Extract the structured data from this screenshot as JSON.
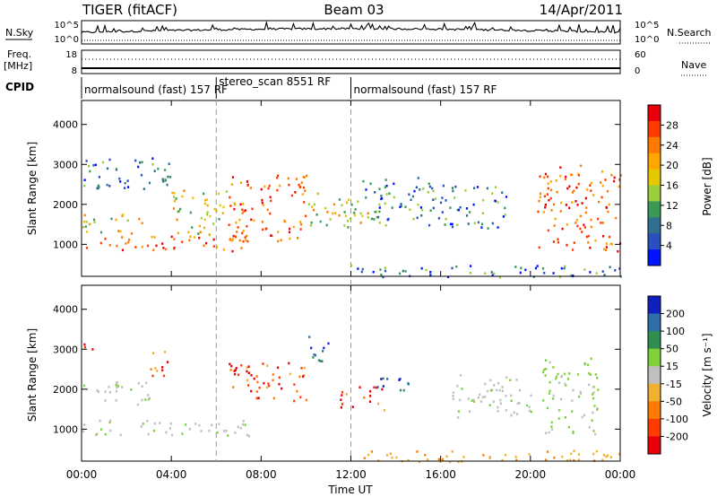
{
  "header": {
    "title": "TIGER (fitACF)",
    "beam": "Beam 03",
    "date": "14/Apr/2011"
  },
  "status_panel": {
    "nsky_label": "N.Sky",
    "nsky_ticks": [
      "10^5",
      "10^0"
    ],
    "nsearch_label": "N.Search",
    "nsearch_ticks": [
      "10^5",
      "10^0"
    ],
    "freq_label_line1": "Freq.",
    "freq_label_line2": "[MHz]",
    "freq_ticks": [
      "18",
      "8"
    ],
    "nave_label": "Nave",
    "nave_ticks": [
      "60",
      "0"
    ],
    "cpid_label": "CPID"
  },
  "modes": [
    {
      "name": "normalsound (fast) 157 RF",
      "start_hour": 0,
      "end_hour": 6
    },
    {
      "name": "stereo_scan 8551 RF",
      "start_hour": 6,
      "end_hour": 12
    },
    {
      "name": "normalsound (fast) 157 RF",
      "start_hour": 12,
      "end_hour": 24
    }
  ],
  "power_panel": {
    "ylabel": "Slant Range [km]",
    "yticks": [
      "4000",
      "3000",
      "2000",
      "1000"
    ],
    "colorbar_label": "Power [dB]",
    "colorbar_ticks": [
      "28",
      "24",
      "20",
      "16",
      "12",
      "8",
      "4"
    ],
    "colorbar_colors": [
      "#e8000b",
      "#ff3b00",
      "#ff7a00",
      "#ffa500",
      "#e6c800",
      "#9ccd3a",
      "#3a9a55",
      "#2f6f8f",
      "#2a4fbf",
      "#0014ff"
    ]
  },
  "velocity_panel": {
    "ylabel": "Slant Range [km]",
    "yticks": [
      "4000",
      "3000",
      "2000",
      "1000"
    ],
    "colorbar_label": "Velocity [m s⁻¹]",
    "colorbar_ticks": [
      "200",
      "100",
      "50",
      "15",
      "-15",
      "-50",
      "-100",
      "-200"
    ],
    "colorbar_colors": [
      "#1020c0",
      "#2e6eaa",
      "#2f8f50",
      "#7fd13b",
      "#bfbfbf",
      "#f0b030",
      "#ff7a00",
      "#ff3b00",
      "#e8000b"
    ]
  },
  "x_axis": {
    "label": "Time UT",
    "ticks": [
      "00:00",
      "04:00",
      "08:00",
      "12:00",
      "16:00",
      "20:00",
      "00:00"
    ]
  },
  "chart_data": [
    {
      "type": "heatmap",
      "title": "Power",
      "xlabel": "Time UT",
      "ylabel": "Slant Range [km]",
      "xlim": [
        0,
        24
      ],
      "ylim": [
        200,
        4600
      ],
      "zlabel": "Power [dB]",
      "zlim": [
        0,
        30
      ],
      "regions": [
        {
          "t0": 0.0,
          "t1": 7.5,
          "r0": 850,
          "r1": 1250,
          "level": "strong"
        },
        {
          "t0": 0.0,
          "t1": 3.0,
          "r0": 1300,
          "r1": 1800,
          "level": "medium"
        },
        {
          "t0": 0.0,
          "t1": 4.0,
          "r0": 2400,
          "r1": 3200,
          "level": "weak"
        },
        {
          "t0": 4.0,
          "t1": 6.5,
          "r0": 1200,
          "r1": 2400,
          "level": "medium"
        },
        {
          "t0": 6.5,
          "t1": 10.0,
          "r0": 1100,
          "r1": 2800,
          "level": "strong"
        },
        {
          "t0": 10.0,
          "t1": 12.5,
          "r0": 1400,
          "r1": 2300,
          "level": "medium"
        },
        {
          "t0": 12.0,
          "t1": 13.5,
          "r0": 1700,
          "r1": 2100,
          "level": "medium"
        },
        {
          "t0": 12.5,
          "t1": 15.5,
          "r0": 1500,
          "r1": 2700,
          "level": "weak"
        },
        {
          "t0": 15.5,
          "t1": 19.0,
          "r0": 1400,
          "r1": 2500,
          "level": "weak"
        },
        {
          "t0": 20.3,
          "t1": 24.0,
          "r0": 850,
          "r1": 3000,
          "level": "strong"
        },
        {
          "t0": 11.5,
          "t1": 24.0,
          "r0": 200,
          "r1": 500,
          "level": "weak"
        }
      ]
    },
    {
      "type": "heatmap",
      "title": "Velocity",
      "xlabel": "Time UT",
      "ylabel": "Slant Range [km]",
      "xlim": [
        0,
        24
      ],
      "ylim": [
        200,
        4600
      ],
      "zlabel": "Velocity [m s⁻¹]",
      "zlim": [
        -250,
        250
      ],
      "regions": [
        {
          "t0": 0.0,
          "t1": 7.5,
          "r0": 850,
          "r1": 1250,
          "level": "ground"
        },
        {
          "t0": 0.0,
          "t1": 3.0,
          "r0": 1600,
          "r1": 2200,
          "level": "ground"
        },
        {
          "t0": 0.0,
          "t1": 1.0,
          "r0": 3000,
          "r1": 3200,
          "level": "negative"
        },
        {
          "t0": 3.0,
          "t1": 4.0,
          "r0": 2300,
          "r1": 3000,
          "level": "negative"
        },
        {
          "t0": 6.5,
          "t1": 10.0,
          "r0": 1700,
          "r1": 2700,
          "level": "negative"
        },
        {
          "t0": 10.0,
          "t1": 11.0,
          "r0": 2600,
          "r1": 3400,
          "level": "positive"
        },
        {
          "t0": 11.5,
          "t1": 13.5,
          "r0": 1500,
          "r1": 2100,
          "level": "negative"
        },
        {
          "t0": 13.0,
          "t1": 15.0,
          "r0": 1900,
          "r1": 2300,
          "level": "positive"
        },
        {
          "t0": 16.5,
          "t1": 20.0,
          "r0": 1300,
          "r1": 2400,
          "level": "ground"
        },
        {
          "t0": 20.5,
          "t1": 23.0,
          "r0": 900,
          "r1": 2800,
          "level": "slow_positive"
        },
        {
          "t0": 12.0,
          "t1": 24.0,
          "r0": 200,
          "r1": 500,
          "level": "slow_negative"
        }
      ]
    }
  ]
}
